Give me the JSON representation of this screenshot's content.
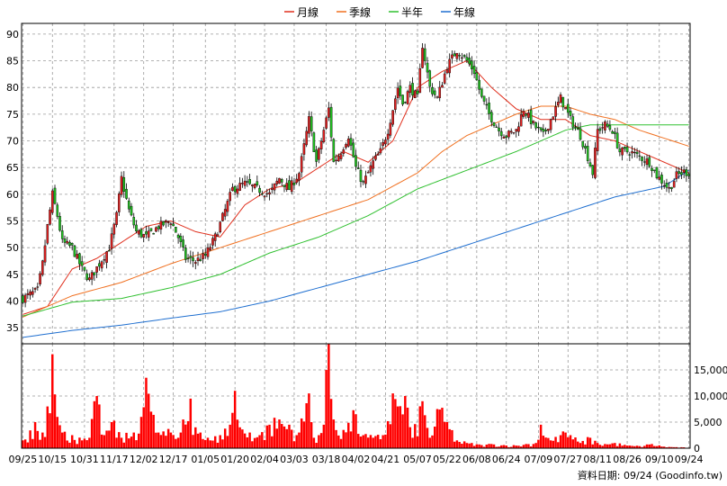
{
  "chart_data": [
    {
      "type": "candlestick",
      "legend_placement": "top-center",
      "legend": [
        {
          "name": "月線",
          "color": "#e0301e"
        },
        {
          "name": "季線",
          "color": "#f07020"
        },
        {
          "name": "半年",
          "color": "#30c030"
        },
        {
          "name": "年線",
          "color": "#1f6fd0"
        }
      ],
      "y_ticks": [
        35,
        40,
        45,
        50,
        55,
        60,
        65,
        70,
        75,
        80,
        85,
        90
      ],
      "ylim": [
        32,
        92
      ],
      "grid": true,
      "x_tick_labels": [
        "09/25",
        "10/15",
        "10/31",
        "11/17",
        "12/02",
        "12/17",
        "01/05",
        "01/20",
        "02/04",
        "03/03",
        "03/18",
        "04/02",
        "04/21",
        "05/07",
        "05/22",
        "06/08",
        "06/24",
        "07/09",
        "07/27",
        "08/11",
        "08/26",
        "09/10",
        "09/24"
      ],
      "close_anchors": [
        [
          0,
          40.5
        ],
        [
          6,
          42
        ],
        [
          8,
          47
        ],
        [
          10,
          54
        ],
        [
          12,
          60
        ],
        [
          14,
          56
        ],
        [
          16,
          51
        ],
        [
          20,
          50
        ],
        [
          24,
          46
        ],
        [
          27,
          44
        ],
        [
          31,
          47
        ],
        [
          35,
          50
        ],
        [
          38,
          56
        ],
        [
          40,
          63
        ],
        [
          43,
          57
        ],
        [
          46,
          53
        ],
        [
          50,
          52
        ],
        [
          55,
          54
        ],
        [
          60,
          55
        ],
        [
          63,
          52
        ],
        [
          66,
          48
        ],
        [
          70,
          47.5
        ],
        [
          74,
          48.5
        ],
        [
          78,
          52
        ],
        [
          82,
          57
        ],
        [
          85,
          61
        ],
        [
          90,
          62
        ],
        [
          95,
          61
        ],
        [
          100,
          60
        ],
        [
          104,
          63
        ],
        [
          108,
          61
        ],
        [
          112,
          64
        ],
        [
          116,
          74
        ],
        [
          119,
          66
        ],
        [
          122,
          72
        ],
        [
          124,
          76
        ],
        [
          126,
          66
        ],
        [
          129,
          68
        ],
        [
          132,
          71
        ],
        [
          135,
          65
        ],
        [
          138,
          62
        ],
        [
          142,
          66
        ],
        [
          145,
          68
        ],
        [
          148,
          72
        ],
        [
          152,
          80
        ],
        [
          154,
          77
        ],
        [
          157,
          80
        ],
        [
          160,
          78
        ],
        [
          162,
          88
        ],
        [
          165,
          80
        ],
        [
          168,
          78
        ],
        [
          172,
          84
        ],
        [
          176,
          87
        ],
        [
          180,
          85
        ],
        [
          183,
          83
        ],
        [
          186,
          78
        ],
        [
          189,
          75
        ],
        [
          193,
          72
        ],
        [
          196,
          71
        ],
        [
          200,
          72
        ],
        [
          203,
          76
        ],
        [
          207,
          73
        ],
        [
          211,
          71
        ],
        [
          214,
          74
        ],
        [
          218,
          78
        ],
        [
          220,
          76
        ],
        [
          222,
          74
        ],
        [
          226,
          71
        ],
        [
          229,
          67
        ],
        [
          231,
          64
        ],
        [
          233,
          72
        ],
        [
          236,
          73
        ],
        [
          239,
          72
        ],
        [
          242,
          68
        ],
        [
          246,
          68
        ],
        [
          250,
          67
        ],
        [
          254,
          66
        ],
        [
          257,
          63.5
        ],
        [
          260,
          62
        ],
        [
          262,
          61
        ],
        [
          265,
          63.5
        ],
        [
          268,
          64.2
        ],
        [
          270,
          64
        ]
      ],
      "moving_averages": [
        {
          "name": "月線",
          "points": [
            [
              0,
              37.5
            ],
            [
              10,
              39
            ],
            [
              20,
              46
            ],
            [
              30,
              48
            ],
            [
              40,
              51
            ],
            [
              50,
              54
            ],
            [
              60,
              55
            ],
            [
              70,
              53
            ],
            [
              80,
              52
            ],
            [
              90,
              58
            ],
            [
              100,
              61
            ],
            [
              110,
              62
            ],
            [
              120,
              65
            ],
            [
              130,
              68
            ],
            [
              140,
              66
            ],
            [
              150,
              70
            ],
            [
              155,
              75
            ],
            [
              160,
              80
            ],
            [
              170,
              83
            ],
            [
              180,
              85
            ],
            [
              190,
              80
            ],
            [
              200,
              76
            ],
            [
              210,
              74
            ],
            [
              220,
              74
            ],
            [
              230,
              71
            ],
            [
              240,
              70
            ],
            [
              250,
              68
            ],
            [
              260,
              66
            ],
            [
              270,
              64
            ]
          ]
        },
        {
          "name": "季線",
          "points": [
            [
              0,
              37
            ],
            [
              20,
              41
            ],
            [
              40,
              43.5
            ],
            [
              60,
              47
            ],
            [
              80,
              50
            ],
            [
              100,
              53
            ],
            [
              120,
              56
            ],
            [
              140,
              59
            ],
            [
              160,
              64
            ],
            [
              170,
              68
            ],
            [
              180,
              71
            ],
            [
              200,
              75
            ],
            [
              210,
              76.5
            ],
            [
              220,
              76.5
            ],
            [
              230,
              75
            ],
            [
              240,
              74
            ],
            [
              250,
              72
            ],
            [
              260,
              70.5
            ],
            [
              270,
              69
            ]
          ]
        },
        {
          "name": "半年",
          "points": [
            [
              0,
              37.2
            ],
            [
              10,
              38.5
            ],
            [
              20,
              39.8
            ],
            [
              40,
              40.5
            ],
            [
              60,
              42.5
            ],
            [
              80,
              45
            ],
            [
              100,
              49
            ],
            [
              120,
              52
            ],
            [
              140,
              56
            ],
            [
              160,
              61
            ],
            [
              180,
              64.5
            ],
            [
              200,
              68
            ],
            [
              210,
              70
            ],
            [
              220,
              72
            ],
            [
              230,
              73
            ],
            [
              240,
              73
            ],
            [
              250,
              73
            ],
            [
              260,
              73
            ],
            [
              270,
              73
            ]
          ]
        },
        {
          "name": "年線",
          "points": [
            [
              0,
              33.2
            ],
            [
              20,
              34.5
            ],
            [
              40,
              35.5
            ],
            [
              60,
              36.8
            ],
            [
              80,
              38
            ],
            [
              100,
              40
            ],
            [
              120,
              42.5
            ],
            [
              140,
              45
            ],
            [
              160,
              47.5
            ],
            [
              180,
              50.5
            ],
            [
              200,
              53.5
            ],
            [
              220,
              56.5
            ],
            [
              240,
              59.5
            ],
            [
              260,
              61.5
            ],
            [
              270,
              64.5
            ]
          ]
        }
      ],
      "bar_count": 271
    },
    {
      "type": "bar",
      "series": [
        {
          "name": "",
          "color": "#ff0000"
        }
      ],
      "y_ticks": [
        0,
        5000,
        10000,
        15000
      ],
      "y_tick_labels": [
        "0",
        "5,000",
        "10,000",
        "15,000"
      ],
      "ylim": [
        0,
        20000
      ],
      "volume_anchors": [
        [
          0,
          1500
        ],
        [
          5,
          5000
        ],
        [
          8,
          3000
        ],
        [
          10,
          8000
        ],
        [
          12,
          18000
        ],
        [
          14,
          6000
        ],
        [
          16,
          3000
        ],
        [
          20,
          2500
        ],
        [
          24,
          1500
        ],
        [
          27,
          2000
        ],
        [
          30,
          10000
        ],
        [
          33,
          2500
        ],
        [
          36,
          5000
        ],
        [
          40,
          2000
        ],
        [
          45,
          3000
        ],
        [
          48,
          6000
        ],
        [
          50,
          13500
        ],
        [
          52,
          7000
        ],
        [
          55,
          3000
        ],
        [
          60,
          3000
        ],
        [
          63,
          2000
        ],
        [
          65,
          5500
        ],
        [
          68,
          9500
        ],
        [
          70,
          4000
        ],
        [
          72,
          3000
        ],
        [
          76,
          1500
        ],
        [
          80,
          2500
        ],
        [
          84,
          4500
        ],
        [
          86,
          11000
        ],
        [
          88,
          4000
        ],
        [
          92,
          3000
        ],
        [
          96,
          2500
        ],
        [
          100,
          4500
        ],
        [
          104,
          5500
        ],
        [
          108,
          4500
        ],
        [
          112,
          3000
        ],
        [
          116,
          10500
        ],
        [
          118,
          2000
        ],
        [
          122,
          4500
        ],
        [
          124,
          20000
        ],
        [
          126,
          5500
        ],
        [
          130,
          3500
        ],
        [
          135,
          6500
        ],
        [
          138,
          2500
        ],
        [
          142,
          2000
        ],
        [
          146,
          2500
        ],
        [
          150,
          10500
        ],
        [
          152,
          8000
        ],
        [
          155,
          10000
        ],
        [
          158,
          2000
        ],
        [
          162,
          9000
        ],
        [
          165,
          2000
        ],
        [
          168,
          7500
        ],
        [
          172,
          5000
        ],
        [
          176,
          1500
        ],
        [
          180,
          1000
        ],
        [
          186,
          600
        ],
        [
          190,
          800
        ],
        [
          195,
          600
        ],
        [
          200,
          500
        ],
        [
          204,
          800
        ],
        [
          208,
          1000
        ],
        [
          210,
          4500
        ],
        [
          214,
          1500
        ],
        [
          218,
          2500
        ],
        [
          220,
          3000
        ],
        [
          222,
          2500
        ],
        [
          226,
          1000
        ],
        [
          230,
          2000
        ],
        [
          233,
          1000
        ],
        [
          236,
          800
        ],
        [
          240,
          1000
        ],
        [
          245,
          500
        ],
        [
          250,
          400
        ],
        [
          255,
          800
        ],
        [
          260,
          300
        ],
        [
          265,
          200
        ],
        [
          270,
          100
        ]
      ]
    }
  ],
  "footer": {
    "source_label": "資料日期: 09/24 (Goodinfo.tw)"
  }
}
